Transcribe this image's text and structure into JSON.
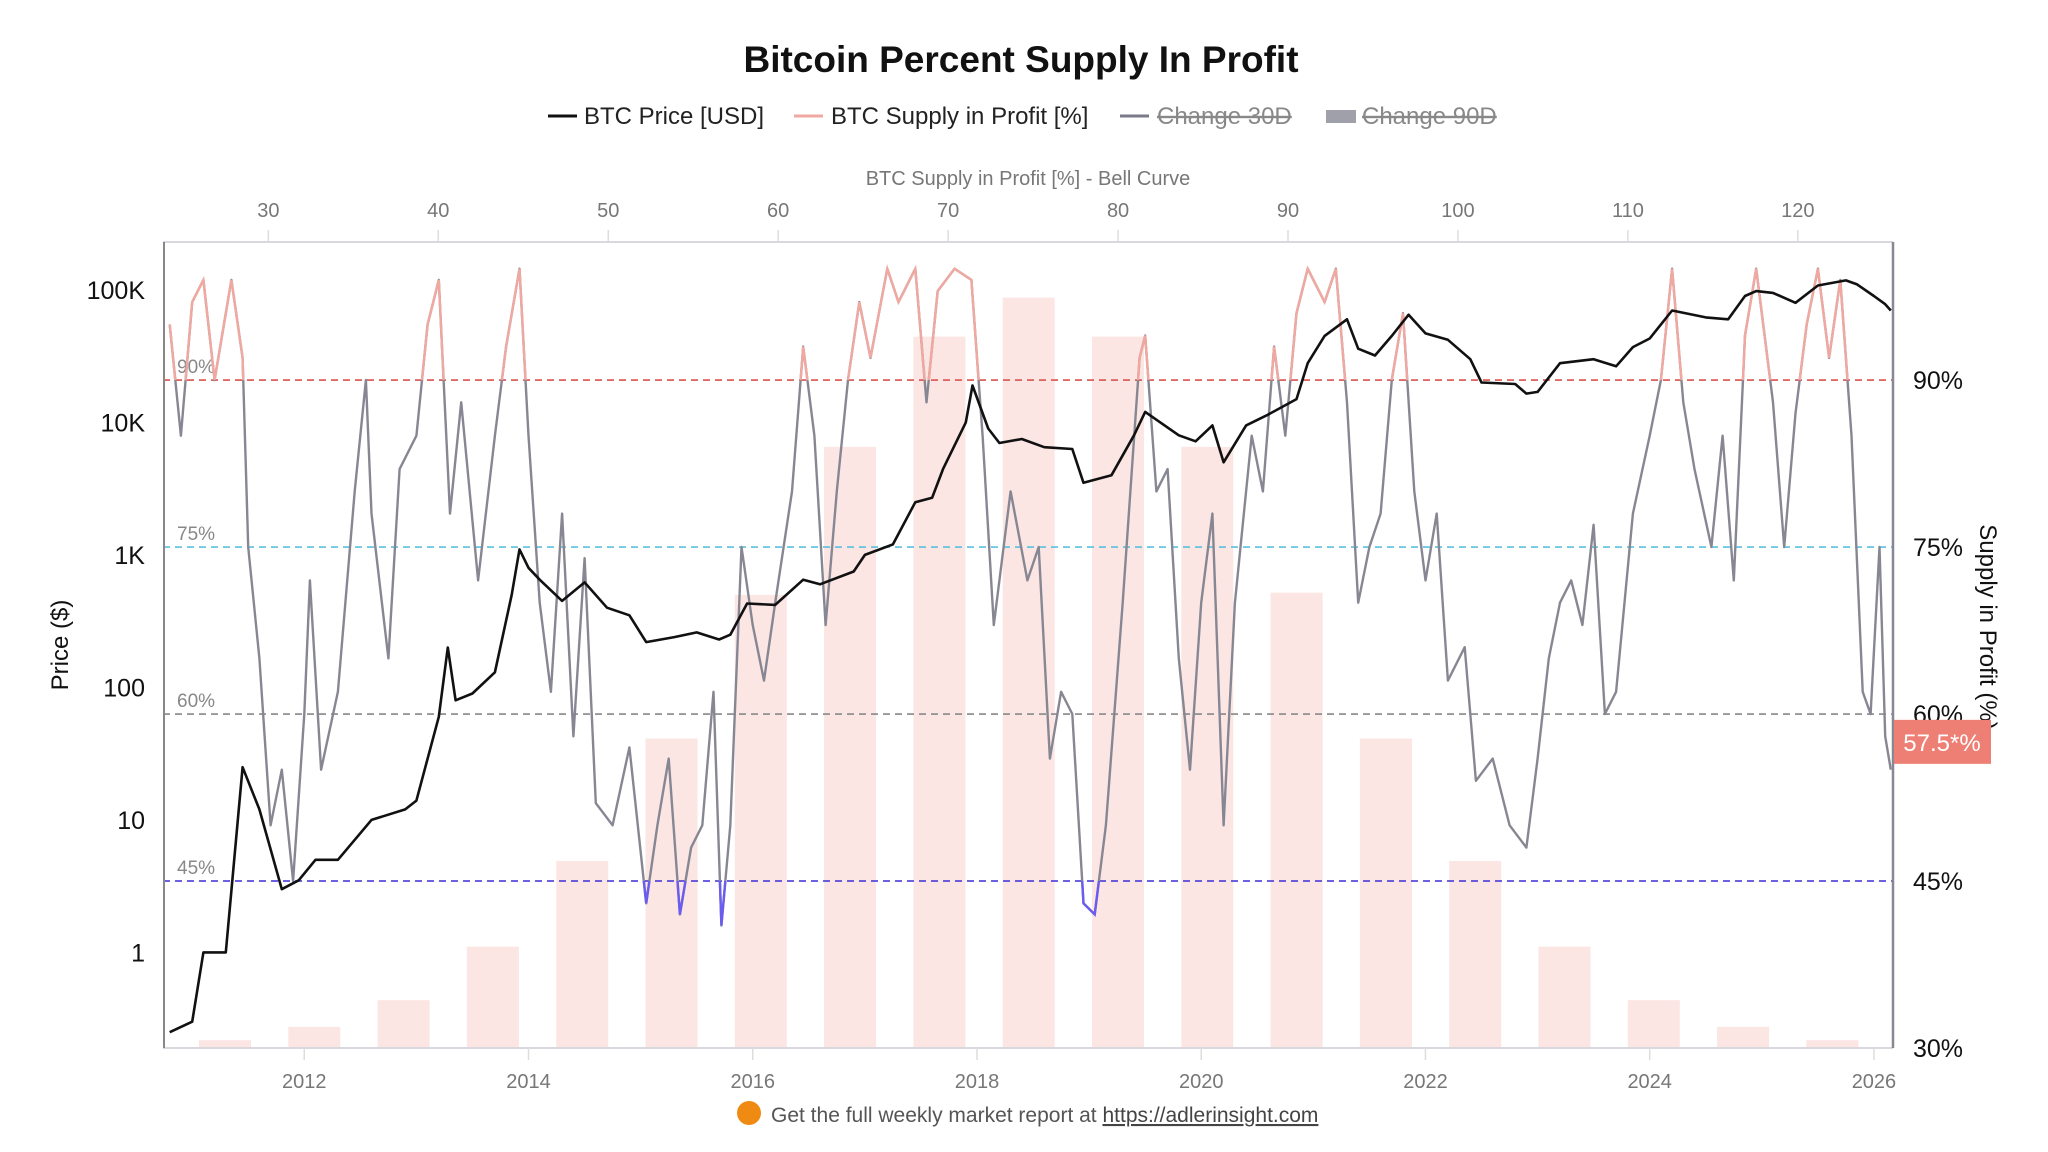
{
  "chart_data": {
    "type": "line",
    "title": "Bitcoin Percent Supply In Profit",
    "legend": [
      {
        "name": "BTC Price [USD]",
        "color": "#111111",
        "hidden": false
      },
      {
        "name": "BTC Supply in Profit [%]",
        "color": "#f0a8a0",
        "hidden": false
      },
      {
        "name": "Change 30D",
        "color": "#7a7a88",
        "hidden": true
      },
      {
        "name": "Change 90D",
        "color": "#9a9aa6",
        "hidden": true
      }
    ],
    "legend_placement": "top",
    "top_axis": {
      "label": "BTC Supply in Profit [%] - Bell Curve",
      "ticks": [
        "30",
        "40",
        "50",
        "60",
        "70",
        "80",
        "90",
        "100",
        "110",
        "120"
      ],
      "range": [
        23.8,
        125.6
      ]
    },
    "left_axis": {
      "label": "Price ($)",
      "scale": "log",
      "range": [
        0.19,
        230000
      ],
      "ticks": [
        {
          "v": 100000,
          "l": "100K"
        },
        {
          "v": 10000,
          "l": "10K"
        },
        {
          "v": 1000,
          "l": "1K"
        },
        {
          "v": 100,
          "l": "100"
        },
        {
          "v": 10,
          "l": "10"
        },
        {
          "v": 1,
          "l": "1"
        }
      ]
    },
    "right_axis": {
      "label": "Supply in Profit (%)",
      "range": [
        30,
        102.4
      ],
      "ticks": [
        {
          "v": 90,
          "l": "90%"
        },
        {
          "v": 75,
          "l": "75%"
        },
        {
          "v": 60,
          "l": "60%"
        },
        {
          "v": 45,
          "l": "45%"
        },
        {
          "v": 30,
          "l": "30%"
        }
      ]
    },
    "x_axis": {
      "range": [
        2010.74,
        2026.17
      ],
      "ticks": [
        "2012",
        "2014",
        "2016",
        "2018",
        "2020",
        "2022",
        "2024",
        "2026"
      ]
    },
    "grid": false,
    "reference_lines": [
      {
        "value": 90,
        "label": "90%",
        "color": "#d9534f"
      },
      {
        "value": 75,
        "label": "75%",
        "color": "#5bc0de"
      },
      {
        "value": 60,
        "label": "60%",
        "color": "#888888"
      },
      {
        "value": 45,
        "label": "45%",
        "color": "#3b2fd6"
      }
    ],
    "colors": {
      "above_90": "#f0a8a0",
      "below_45": "#6b5cf0",
      "supply_line": "#878793",
      "price_line": "#111111",
      "bars": "#fbe6e4",
      "badge": "#ee7f74"
    },
    "current_value_badge": "57.5*%",
    "bell_curve_bars": [
      30.7,
      31.9,
      34.3,
      39.1,
      46.8,
      57.8,
      70.7,
      84.0,
      93.9,
      97.4,
      93.9,
      84.0,
      70.9,
      57.8,
      46.8,
      39.1,
      34.3,
      31.9,
      30.7
    ],
    "price": [
      [
        2010.8,
        0.25
      ],
      [
        2011.0,
        0.3
      ],
      [
        2011.1,
        1
      ],
      [
        2011.3,
        1
      ],
      [
        2011.45,
        25
      ],
      [
        2011.6,
        12
      ],
      [
        2011.8,
        3
      ],
      [
        2011.95,
        3.5
      ],
      [
        2012.1,
        5
      ],
      [
        2012.3,
        5
      ],
      [
        2012.6,
        10
      ],
      [
        2012.9,
        12
      ],
      [
        2013.0,
        14
      ],
      [
        2013.2,
        60
      ],
      [
        2013.28,
        200
      ],
      [
        2013.35,
        80
      ],
      [
        2013.5,
        90
      ],
      [
        2013.7,
        130
      ],
      [
        2013.85,
        500
      ],
      [
        2013.92,
        1100
      ],
      [
        2014.0,
        800
      ],
      [
        2014.1,
        650
      ],
      [
        2014.3,
        450
      ],
      [
        2014.5,
        620
      ],
      [
        2014.7,
        400
      ],
      [
        2014.9,
        350
      ],
      [
        2015.05,
        220
      ],
      [
        2015.3,
        240
      ],
      [
        2015.5,
        260
      ],
      [
        2015.7,
        230
      ],
      [
        2015.8,
        250
      ],
      [
        2015.95,
        430
      ],
      [
        2016.2,
        420
      ],
      [
        2016.45,
        650
      ],
      [
        2016.6,
        600
      ],
      [
        2016.9,
        750
      ],
      [
        2017.0,
        1000
      ],
      [
        2017.25,
        1200
      ],
      [
        2017.45,
        2500
      ],
      [
        2017.6,
        2700
      ],
      [
        2017.7,
        4500
      ],
      [
        2017.9,
        10000
      ],
      [
        2017.96,
        19000
      ],
      [
        2018.1,
        9000
      ],
      [
        2018.2,
        7000
      ],
      [
        2018.4,
        7500
      ],
      [
        2018.6,
        6500
      ],
      [
        2018.85,
        6300
      ],
      [
        2018.95,
        3500
      ],
      [
        2019.2,
        4000
      ],
      [
        2019.4,
        8000
      ],
      [
        2019.5,
        12000
      ],
      [
        2019.8,
        8000
      ],
      [
        2019.95,
        7200
      ],
      [
        2020.1,
        9500
      ],
      [
        2020.2,
        5000
      ],
      [
        2020.4,
        9500
      ],
      [
        2020.6,
        11500
      ],
      [
        2020.85,
        15000
      ],
      [
        2020.95,
        28000
      ],
      [
        2021.1,
        45000
      ],
      [
        2021.3,
        60000
      ],
      [
        2021.4,
        36000
      ],
      [
        2021.55,
        32000
      ],
      [
        2021.7,
        45000
      ],
      [
        2021.85,
        65000
      ],
      [
        2022.0,
        47000
      ],
      [
        2022.2,
        42000
      ],
      [
        2022.4,
        30000
      ],
      [
        2022.5,
        20000
      ],
      [
        2022.8,
        19500
      ],
      [
        2022.9,
        16500
      ],
      [
        2023.0,
        17000
      ],
      [
        2023.2,
        28000
      ],
      [
        2023.5,
        30000
      ],
      [
        2023.7,
        26500
      ],
      [
        2023.85,
        37000
      ],
      [
        2024.0,
        43000
      ],
      [
        2024.2,
        70000
      ],
      [
        2024.5,
        62000
      ],
      [
        2024.7,
        60000
      ],
      [
        2024.85,
        90000
      ],
      [
        2024.95,
        98000
      ],
      [
        2025.1,
        95000
      ],
      [
        2025.3,
        80000
      ],
      [
        2025.5,
        108000
      ],
      [
        2025.75,
        118000
      ],
      [
        2025.85,
        110000
      ],
      [
        2026.0,
        90000
      ],
      [
        2026.1,
        78000
      ],
      [
        2026.15,
        70000
      ]
    ],
    "supply": [
      [
        2010.8,
        95
      ],
      [
        2010.9,
        85
      ],
      [
        2011.0,
        97
      ],
      [
        2011.1,
        99
      ],
      [
        2011.2,
        90
      ],
      [
        2011.35,
        99
      ],
      [
        2011.45,
        92
      ],
      [
        2011.5,
        75
      ],
      [
        2011.6,
        65
      ],
      [
        2011.7,
        50
      ],
      [
        2011.8,
        55
      ],
      [
        2011.9,
        45
      ],
      [
        2012.0,
        60
      ],
      [
        2012.05,
        72
      ],
      [
        2012.15,
        55
      ],
      [
        2012.3,
        62
      ],
      [
        2012.45,
        80
      ],
      [
        2012.55,
        90
      ],
      [
        2012.6,
        78
      ],
      [
        2012.75,
        65
      ],
      [
        2012.85,
        82
      ],
      [
        2013.0,
        85
      ],
      [
        2013.1,
        95
      ],
      [
        2013.2,
        99
      ],
      [
        2013.3,
        78
      ],
      [
        2013.4,
        88
      ],
      [
        2013.55,
        72
      ],
      [
        2013.7,
        85
      ],
      [
        2013.8,
        93
      ],
      [
        2013.92,
        100
      ],
      [
        2014.0,
        85
      ],
      [
        2014.1,
        70
      ],
      [
        2014.2,
        62
      ],
      [
        2014.3,
        78
      ],
      [
        2014.4,
        58
      ],
      [
        2014.5,
        74
      ],
      [
        2014.6,
        52
      ],
      [
        2014.75,
        50
      ],
      [
        2014.9,
        57
      ],
      [
        2015.05,
        43
      ],
      [
        2015.15,
        50
      ],
      [
        2015.25,
        56
      ],
      [
        2015.35,
        42
      ],
      [
        2015.45,
        48
      ],
      [
        2015.55,
        50
      ],
      [
        2015.65,
        62
      ],
      [
        2015.72,
        41
      ],
      [
        2015.8,
        50
      ],
      [
        2015.9,
        75
      ],
      [
        2016.0,
        68
      ],
      [
        2016.1,
        63
      ],
      [
        2016.2,
        70
      ],
      [
        2016.35,
        80
      ],
      [
        2016.45,
        93
      ],
      [
        2016.55,
        85
      ],
      [
        2016.65,
        68
      ],
      [
        2016.75,
        80
      ],
      [
        2016.85,
        90
      ],
      [
        2016.95,
        97
      ],
      [
        2017.05,
        92
      ],
      [
        2017.2,
        100
      ],
      [
        2017.3,
        97
      ],
      [
        2017.45,
        100
      ],
      [
        2017.55,
        88
      ],
      [
        2017.65,
        98
      ],
      [
        2017.8,
        100
      ],
      [
        2017.95,
        99
      ],
      [
        2018.05,
        85
      ],
      [
        2018.15,
        68
      ],
      [
        2018.3,
        80
      ],
      [
        2018.45,
        72
      ],
      [
        2018.55,
        75
      ],
      [
        2018.65,
        56
      ],
      [
        2018.75,
        62
      ],
      [
        2018.85,
        60
      ],
      [
        2018.95,
        43
      ],
      [
        2019.05,
        42
      ],
      [
        2019.15,
        50
      ],
      [
        2019.3,
        70
      ],
      [
        2019.45,
        92
      ],
      [
        2019.5,
        94
      ],
      [
        2019.6,
        80
      ],
      [
        2019.7,
        82
      ],
      [
        2019.8,
        65
      ],
      [
        2019.9,
        55
      ],
      [
        2020.0,
        70
      ],
      [
        2020.1,
        78
      ],
      [
        2020.2,
        50
      ],
      [
        2020.3,
        70
      ],
      [
        2020.45,
        85
      ],
      [
        2020.55,
        80
      ],
      [
        2020.65,
        93
      ],
      [
        2020.75,
        85
      ],
      [
        2020.85,
        96
      ],
      [
        2020.95,
        100
      ],
      [
        2021.1,
        97
      ],
      [
        2021.2,
        100
      ],
      [
        2021.3,
        88
      ],
      [
        2021.4,
        70
      ],
      [
        2021.5,
        75
      ],
      [
        2021.6,
        78
      ],
      [
        2021.7,
        90
      ],
      [
        2021.8,
        96
      ],
      [
        2021.9,
        80
      ],
      [
        2022.0,
        72
      ],
      [
        2022.1,
        78
      ],
      [
        2022.2,
        63
      ],
      [
        2022.35,
        66
      ],
      [
        2022.45,
        54
      ],
      [
        2022.6,
        56
      ],
      [
        2022.75,
        50
      ],
      [
        2022.9,
        48
      ],
      [
        2023.0,
        56
      ],
      [
        2023.1,
        65
      ],
      [
        2023.2,
        70
      ],
      [
        2023.3,
        72
      ],
      [
        2023.4,
        68
      ],
      [
        2023.5,
        77
      ],
      [
        2023.6,
        60
      ],
      [
        2023.7,
        62
      ],
      [
        2023.85,
        78
      ],
      [
        2024.0,
        85
      ],
      [
        2024.1,
        90
      ],
      [
        2024.2,
        100
      ],
      [
        2024.3,
        88
      ],
      [
        2024.4,
        82
      ],
      [
        2024.55,
        75
      ],
      [
        2024.65,
        85
      ],
      [
        2024.75,
        72
      ],
      [
        2024.85,
        94
      ],
      [
        2024.95,
        100
      ],
      [
        2025.1,
        88
      ],
      [
        2025.2,
        75
      ],
      [
        2025.3,
        87
      ],
      [
        2025.4,
        95
      ],
      [
        2025.5,
        100
      ],
      [
        2025.6,
        92
      ],
      [
        2025.7,
        99
      ],
      [
        2025.8,
        85
      ],
      [
        2025.9,
        62
      ],
      [
        2025.97,
        60
      ],
      [
        2026.05,
        75
      ],
      [
        2026.1,
        58
      ],
      [
        2026.15,
        55
      ]
    ]
  },
  "footer": {
    "text": "Get the full weekly market report at ",
    "link": "https://adlerinsight.com",
    "icon": "orange-circle-icon"
  }
}
